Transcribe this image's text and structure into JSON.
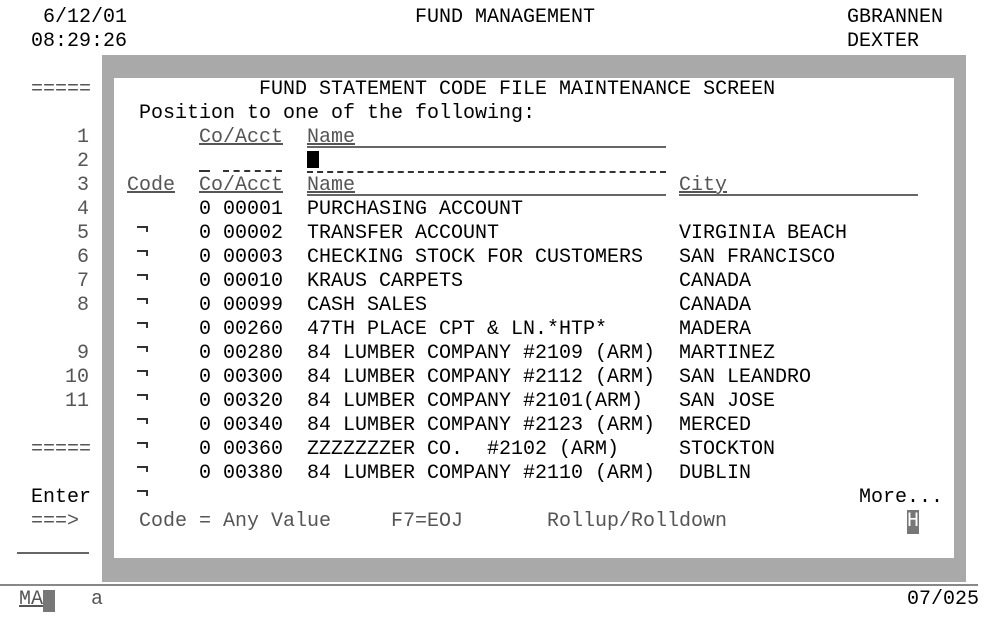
{
  "header": {
    "date": "6/12/01",
    "time": "08:29:26",
    "app_title": "FUND MANAGEMENT",
    "user": "GBRANNEN",
    "system": "DEXTER"
  },
  "left_gutter": {
    "top_marker": "=====",
    "bottom_marker": "=====",
    "line_numbers": [
      "1",
      "2",
      "3",
      "4",
      "5",
      "6",
      "7",
      "8",
      "",
      "9",
      "10",
      "11"
    ],
    "enter_label": "Enter",
    "prompt": "===>"
  },
  "window": {
    "title": "FUND STATEMENT CODE FILE MAINTENANCE SCREEN",
    "position_prompt": "Position to one of the following:",
    "position_headers": {
      "co_acct": "Co/Acct",
      "name": "Name"
    },
    "columns": {
      "code": "Code",
      "co_acct": "Co/Acct",
      "name": "Name",
      "city": "City"
    },
    "rows": [
      {
        "co": "0",
        "acct": "00001",
        "name": "PURCHASING ACCOUNT",
        "city": ""
      },
      {
        "co": "0",
        "acct": "00002",
        "name": "TRANSFER ACCOUNT",
        "city": "VIRGINIA BEACH"
      },
      {
        "co": "0",
        "acct": "00003",
        "name": "CHECKING STOCK FOR CUSTOMERS",
        "city": "SAN FRANCISCO"
      },
      {
        "co": "0",
        "acct": "00010",
        "name": "KRAUS CARPETS",
        "city": "CANADA"
      },
      {
        "co": "0",
        "acct": "00099",
        "name": "CASH SALES",
        "city": "CANADA"
      },
      {
        "co": "0",
        "acct": "00260",
        "name": "47TH PLACE CPT & LN.*HTP*",
        "city": "MADERA"
      },
      {
        "co": "0",
        "acct": "00280",
        "name": "84 LUMBER COMPANY #2109 (ARM)",
        "city": "MARTINEZ"
      },
      {
        "co": "0",
        "acct": "00300",
        "name": "84 LUMBER COMPANY #2112 (ARM)",
        "city": "SAN LEANDRO"
      },
      {
        "co": "0",
        "acct": "00320",
        "name": "84 LUMBER COMPANY #2101(ARM)",
        "city": "SAN JOSE"
      },
      {
        "co": "0",
        "acct": "00340",
        "name": "84 LUMBER COMPANY #2123 (ARM)",
        "city": "MERCED"
      },
      {
        "co": "0",
        "acct": "00360",
        "name": "ZZZZZZZER CO.  #2102 (ARM)",
        "city": "STOCKTON"
      },
      {
        "co": "0",
        "acct": "00380",
        "name": "84 LUMBER COMPANY #2110 (ARM)",
        "city": "DUBLIN"
      }
    ],
    "more": "More...",
    "footer": {
      "code_hint": "Code = Any Value",
      "f7": "F7=EOJ",
      "roll": "Rollup/Rolldown",
      "cursor_char": "H"
    }
  },
  "status_bar": {
    "mode": "MA",
    "indicator": "a",
    "cursor_pos": "07/025"
  }
}
